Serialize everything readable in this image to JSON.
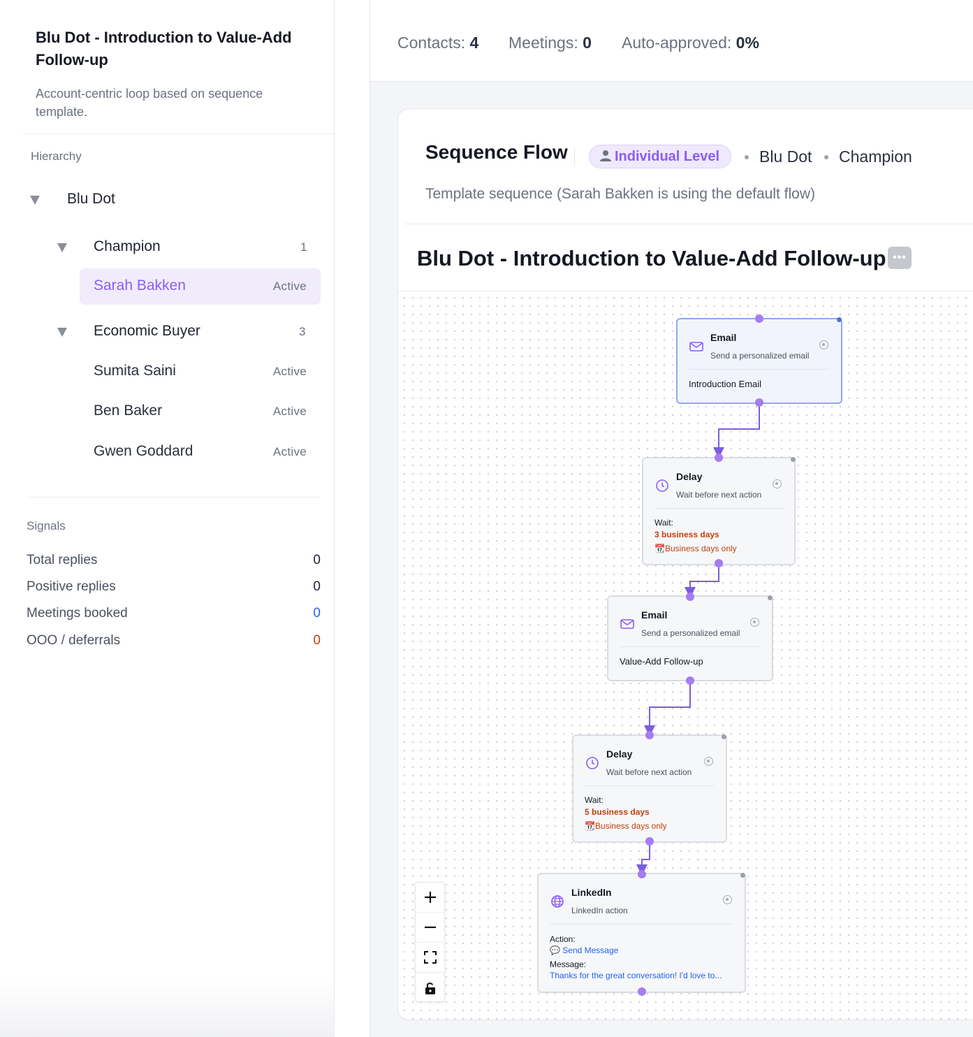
{
  "sidebar": {
    "title": "Blu Dot - Introduction to Value-Add Follow-up",
    "description": "Account-centric loop based on sequence template.",
    "hierarchy_label": "Hierarchy",
    "account": "Blu Dot",
    "groups": [
      {
        "name": "Champion",
        "count": "1",
        "contacts": [
          {
            "name": "Sarah Bakken",
            "status": "Active",
            "selected": true
          }
        ]
      },
      {
        "name": "Economic Buyer",
        "count": "3",
        "contacts": [
          {
            "name": "Sumita Saini",
            "status": "Active"
          },
          {
            "name": "Ben Baker",
            "status": "Active"
          },
          {
            "name": "Gwen Goddard",
            "status": "Active"
          }
        ]
      }
    ],
    "signals_label": "Signals",
    "signals": [
      {
        "label": "Total replies",
        "value": "0",
        "color": "#1f2430"
      },
      {
        "label": "Positive replies",
        "value": "0",
        "color": "#1f2430"
      },
      {
        "label": "Meetings booked",
        "value": "0",
        "color": "#2563eb"
      },
      {
        "label": "OOO / deferrals",
        "value": "0",
        "color": "#c2410c"
      }
    ]
  },
  "stats": {
    "contacts_label": "Contacts:",
    "contacts_value": "4",
    "meetings_label": "Meetings:",
    "meetings_value": "0",
    "auto_label": "Auto-approved:",
    "auto_value": "0%"
  },
  "sequence": {
    "title": "Sequence Flow",
    "level_icon": "person-icon",
    "level": "Individual Level",
    "breadcrumb": [
      "Blu Dot",
      "Champion"
    ],
    "subtitle": "Template sequence (Sarah Bakken is using the default flow)",
    "flow_title": "Blu Dot - Introduction to Value-Add Follow-up",
    "more_icon": "•••"
  },
  "nodes": [
    {
      "type": "email",
      "title": "Email",
      "subtitle": "Send a personalized email",
      "body": "Introduction Email"
    },
    {
      "type": "delay",
      "title": "Delay",
      "subtitle": "Wait before next action",
      "wait_label": "Wait:",
      "wait_value": "3 business days",
      "note": "📆Business days only"
    },
    {
      "type": "email",
      "title": "Email",
      "subtitle": "Send a personalized email",
      "body": "Value-Add Follow-up"
    },
    {
      "type": "delay",
      "title": "Delay",
      "subtitle": "Wait before next action",
      "wait_label": "Wait:",
      "wait_value": "5 business days",
      "note": "📆Business days only"
    },
    {
      "type": "linkedin",
      "title": "LinkedIn",
      "subtitle": "LinkedIn action",
      "action_label": "Action:",
      "action_value": "💬 Send Message",
      "message_label": "Message:",
      "message_value": "Thanks for the great conversation! I'd love to..."
    }
  ],
  "zoom": {
    "zoom_in": "+",
    "zoom_out": "–",
    "fit": "fit-view-icon",
    "lock": "lock-icon"
  },
  "colors": {
    "accent": "#8b5cf6",
    "handle": "#a67cf0",
    "warning": "#c2410c",
    "link": "#2563eb"
  }
}
